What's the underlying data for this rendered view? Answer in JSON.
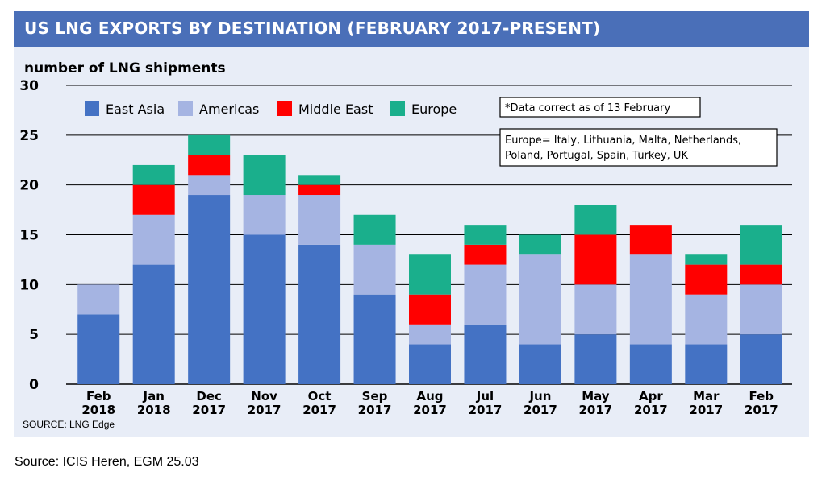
{
  "title": "US LNG EXPORTS BY DESTINATION (FEBRUARY 2017-PRESENT)",
  "footer_source": "Source: ICIS Heren, EGM 25.03",
  "colors": {
    "title_bar": "#4a6fb8",
    "panel": "#e8edf7",
    "East Asia": "#4472c4",
    "Americas": "#a5b4e2",
    "Middle East": "#ff0000",
    "Europe": "#1aaf8c"
  },
  "chart_data": {
    "type": "bar",
    "stacked": true,
    "ylabel": "number of LNG shipments",
    "ylim": [
      0,
      30
    ],
    "yticks": [
      "0",
      "5",
      "10",
      "15",
      "20",
      "25",
      "30"
    ],
    "grid": true,
    "legend_position": "top-left",
    "categories": [
      [
        "Feb",
        "2018"
      ],
      [
        "Jan",
        "2018"
      ],
      [
        "Dec",
        "2017"
      ],
      [
        "Nov",
        "2017"
      ],
      [
        "Oct",
        "2017"
      ],
      [
        "Sep",
        "2017"
      ],
      [
        "Aug",
        "2017"
      ],
      [
        "Jul",
        "2017"
      ],
      [
        "Jun",
        "2017"
      ],
      [
        "May",
        "2017"
      ],
      [
        "Apr",
        "2017"
      ],
      [
        "Mar",
        "2017"
      ],
      [
        "Feb",
        "2017"
      ]
    ],
    "series": [
      {
        "name": "East Asia",
        "values": [
          7,
          12,
          19,
          15,
          14,
          9,
          4,
          6,
          4,
          5,
          4,
          4,
          5
        ]
      },
      {
        "name": "Americas",
        "values": [
          3,
          5,
          2,
          4,
          5,
          5,
          2,
          6,
          9,
          5,
          9,
          5,
          5
        ]
      },
      {
        "name": "Middle East",
        "values": [
          0,
          3,
          2,
          0,
          1,
          0,
          3,
          2,
          0,
          5,
          3,
          3,
          2
        ]
      },
      {
        "name": "Europe",
        "values": [
          0,
          2,
          2,
          4,
          1,
          3,
          4,
          2,
          2,
          3,
          0,
          1,
          4
        ]
      }
    ],
    "annotations": [
      "*Data correct as of 13 February",
      "Europe= Italy, Lithuania, Malta, Netherlands,",
      "Poland, Portugal, Spain, Turkey, UK"
    ],
    "source": "SOURCE: LNG Edge"
  }
}
